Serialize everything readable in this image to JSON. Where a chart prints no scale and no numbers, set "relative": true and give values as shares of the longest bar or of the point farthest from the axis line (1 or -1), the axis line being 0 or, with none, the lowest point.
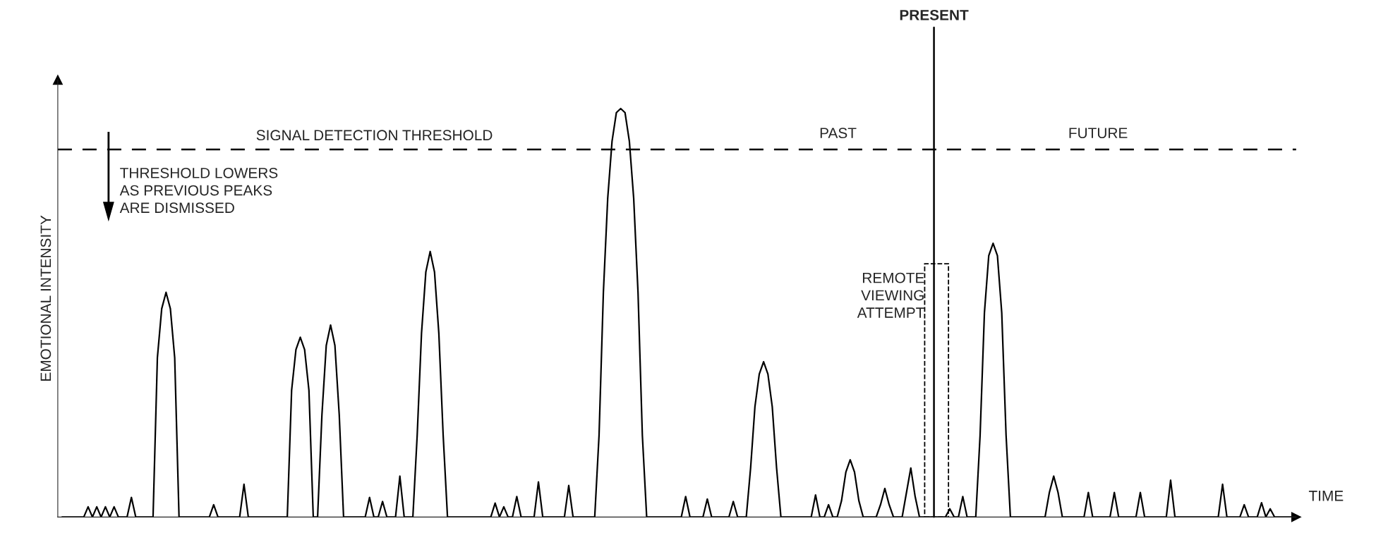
{
  "chart_data": {
    "type": "line",
    "relative": true,
    "xlabel": "TIME",
    "ylabel": "EMOTIONAL INTENSITY",
    "line_style": "solid",
    "marker": "none",
    "categories": [
      null,
      null,
      null,
      null,
      null,
      null,
      null,
      null,
      null,
      null,
      null,
      null,
      null,
      null,
      null,
      null,
      null,
      null,
      null,
      null,
      null,
      null,
      null,
      null,
      null,
      null,
      null,
      null,
      null,
      null,
      null,
      null,
      null,
      null,
      null,
      null,
      null,
      null,
      null,
      null,
      null,
      null,
      null,
      null,
      null,
      null,
      null,
      null,
      null,
      null,
      null,
      null,
      null,
      null,
      null,
      null,
      null,
      null,
      null,
      null,
      null,
      null,
      null,
      null,
      null,
      null,
      null,
      null,
      null,
      null,
      null,
      null,
      null,
      null,
      null,
      null,
      null,
      null,
      null,
      null,
      null,
      null,
      null,
      null,
      null,
      null,
      null,
      null,
      null,
      null,
      null,
      null,
      null,
      null,
      null,
      null,
      null,
      null,
      null,
      null,
      null,
      null,
      null,
      null,
      null,
      null,
      null,
      null,
      null,
      null,
      null,
      null,
      null,
      null,
      null,
      null,
      null,
      null,
      null,
      null,
      null,
      null,
      null,
      null,
      null,
      null,
      null,
      null,
      null,
      null,
      null,
      null,
      null,
      null,
      null,
      null,
      null,
      null,
      null,
      null,
      null,
      null,
      null,
      null,
      null,
      null,
      null,
      null,
      null,
      null,
      null,
      null,
      null,
      null,
      null,
      null,
      null,
      null,
      null,
      null,
      null,
      null,
      null,
      null,
      null,
      null,
      null,
      null,
      null,
      null,
      null,
      null,
      null,
      null,
      null,
      null,
      null,
      null,
      null,
      null,
      null,
      null,
      null,
      null,
      null,
      null,
      null,
      null,
      null,
      null,
      null,
      null,
      null,
      null,
      null,
      null,
      null,
      null,
      null,
      null,
      null,
      null,
      null,
      null,
      null,
      null,
      null,
      null,
      null,
      null,
      null,
      null,
      null,
      null,
      null,
      null,
      null,
      null,
      null,
      null,
      null,
      null,
      null,
      null,
      null,
      null,
      null,
      null,
      null,
      null,
      null,
      null,
      null,
      null,
      null,
      null,
      null,
      null,
      null,
      null,
      null,
      null,
      null,
      null,
      null,
      null,
      null,
      null,
      null,
      null,
      null,
      null,
      null,
      null,
      null,
      null,
      null,
      null,
      null,
      null,
      null,
      null,
      null,
      null,
      null,
      null,
      null,
      null,
      null,
      null,
      null,
      null,
      null,
      null,
      null,
      null,
      null,
      null,
      null,
      null,
      null,
      null,
      null,
      null,
      null
    ],
    "series": [
      {
        "color": "#000000",
        "values": [
          0,
          0,
          0,
          0,
          0,
          0,
          0.025,
          0,
          0.025,
          0,
          0.025,
          0,
          0.025,
          0,
          0,
          0,
          0.048,
          0,
          0,
          0,
          0,
          0,
          0.39,
          0.51,
          0.55,
          0.51,
          0.39,
          0,
          0,
          0,
          0,
          0,
          0,
          0,
          0,
          0.03,
          0,
          0,
          0,
          0,
          0,
          0,
          0.08,
          0,
          0,
          0,
          0,
          0,
          0,
          0,
          0,
          0,
          0,
          0.31,
          0.41,
          0.44,
          0.41,
          0.31,
          0,
          0,
          0.25,
          0.42,
          0.47,
          0.42,
          0.25,
          0,
          0,
          0,
          0,
          0,
          0,
          0.048,
          0,
          0,
          0.038,
          0,
          0,
          0,
          0.1,
          0,
          0,
          0,
          0.2,
          0.45,
          0.6,
          0.65,
          0.6,
          0.45,
          0.2,
          0,
          0,
          0,
          0,
          0,
          0,
          0,
          0,
          0,
          0,
          0,
          0.034,
          0,
          0.025,
          0,
          0,
          0.05,
          0,
          0,
          0,
          0,
          0.086,
          0,
          0,
          0,
          0,
          0,
          0,
          0.077,
          0,
          0,
          0,
          0,
          0,
          0,
          0.2,
          0.55,
          0.78,
          0.92,
          0.99,
          1,
          0.99,
          0.92,
          0.78,
          0.55,
          0.2,
          0,
          0,
          0,
          0,
          0,
          0,
          0,
          0,
          0,
          0.05,
          0,
          0,
          0,
          0,
          0.044,
          0,
          0,
          0,
          0,
          0,
          0.038,
          0,
          0,
          0,
          0.12,
          0.27,
          0.35,
          0.38,
          0.35,
          0.27,
          0.12,
          0,
          0,
          0,
          0,
          0,
          0,
          0,
          0,
          0.054,
          0,
          0,
          0.03,
          0,
          0,
          0.04,
          0.11,
          0.14,
          0.11,
          0.04,
          0,
          0,
          0,
          0,
          0.03,
          0.07,
          0.03,
          0,
          0,
          0,
          0.06,
          0.12,
          0.05,
          0,
          0,
          0,
          0,
          0,
          0,
          0,
          0.02,
          0,
          0,
          0.05,
          0,
          0,
          0,
          0.2,
          0.5,
          0.64,
          0.67,
          0.64,
          0.5,
          0.2,
          0,
          0,
          0,
          0,
          0,
          0,
          0,
          0,
          0,
          0.06,
          0.1,
          0.06,
          0,
          0,
          0,
          0,
          0,
          0,
          0.06,
          0,
          0,
          0,
          0,
          0,
          0.06,
          0,
          0,
          0,
          0,
          0,
          0.06,
          0,
          0,
          0,
          0,
          0,
          0,
          0.09,
          0,
          0,
          0,
          0,
          0,
          0,
          0,
          0,
          0,
          0,
          0,
          0.08,
          0,
          0,
          0,
          0,
          0.03,
          0,
          0,
          0,
          0.035,
          0,
          0.02,
          0,
          0,
          0,
          0,
          0
        ]
      }
    ],
    "ref_lines": [
      {
        "axis": "y",
        "value": 0.9,
        "label": "SIGNAL DETECTION THRESHOLD",
        "line_style": "dashed",
        "color": "#000000"
      }
    ],
    "annotations": [
      "PRESENT",
      "THRESHOLD LOWERS\nAS PREVIOUS PEAKS\nARE DISMISSED",
      "PAST",
      "FUTURE",
      "REMOTE\nVIEWING\nATTEMPT"
    ]
  }
}
